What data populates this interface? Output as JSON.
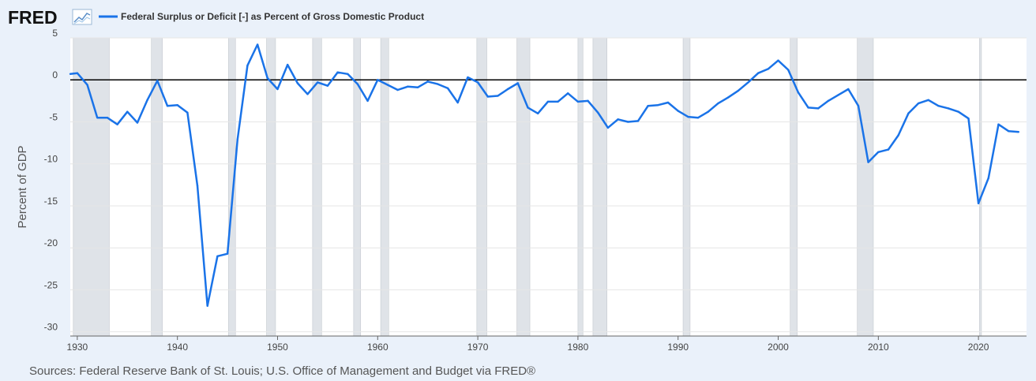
{
  "header": {
    "logo": "FRED",
    "logo_icon": "line-graph-icon",
    "series_label": "Federal Surplus or Deficit [-] as Percent of Gross Domestic Product"
  },
  "footer": {
    "source": "Sources: Federal Reserve Bank of St. Louis; U.S. Office of Management and Budget via FRED®"
  },
  "colors": {
    "series": "#1a73e8",
    "recession": "#dfe3e8",
    "zero_line": "#000000",
    "grid": "#e6e6e6",
    "plot_bg": "#ffffff",
    "page_bg": "#eaf1fa"
  },
  "chart_data": {
    "type": "line",
    "title": "Federal Surplus or Deficit [-] as Percent of Gross Domestic Product",
    "xlabel": "",
    "ylabel": "Percent of GDP",
    "xlim": [
      1929.3,
      2024.8
    ],
    "ylim": [
      -30.5,
      5
    ],
    "x_ticks": [
      1930,
      1940,
      1950,
      1960,
      1970,
      1980,
      1990,
      2000,
      2010,
      2020
    ],
    "x_tick_labels": [
      "1930",
      "1940",
      "1950",
      "1960",
      "1970",
      "1980",
      "1990",
      "2000",
      "2010",
      "2020"
    ],
    "y_ticks": [
      5,
      0,
      -5,
      -10,
      -15,
      -20,
      -25,
      -30
    ],
    "y_tick_labels": [
      "5",
      "0",
      "-5",
      "-10",
      "-15",
      "-20",
      "-25",
      "-30"
    ],
    "grid": true,
    "zero_line": 0,
    "recessions": [
      [
        1929.6,
        1933.2
      ],
      [
        1937.4,
        1938.5
      ],
      [
        1945.1,
        1945.8
      ],
      [
        1948.9,
        1949.8
      ],
      [
        1953.5,
        1954.4
      ],
      [
        1957.6,
        1958.3
      ],
      [
        1960.3,
        1961.1
      ],
      [
        1969.9,
        1970.9
      ],
      [
        1973.9,
        1975.2
      ],
      [
        1980.0,
        1980.5
      ],
      [
        1981.5,
        1982.9
      ],
      [
        1990.5,
        1991.2
      ],
      [
        2001.2,
        2001.9
      ],
      [
        2007.9,
        2009.5
      ],
      [
        2020.1,
        2020.3
      ]
    ],
    "series": [
      {
        "name": "Federal Surplus or Deficit [-] as Percent of Gross Domestic Product",
        "x": [
          1929,
          1930,
          1931,
          1932,
          1933,
          1934,
          1935,
          1936,
          1937,
          1938,
          1939,
          1940,
          1941,
          1942,
          1943,
          1944,
          1945,
          1946,
          1947,
          1948,
          1949,
          1950,
          1951,
          1952,
          1953,
          1954,
          1955,
          1956,
          1957,
          1958,
          1959,
          1960,
          1961,
          1962,
          1963,
          1964,
          1965,
          1966,
          1967,
          1968,
          1969,
          1970,
          1971,
          1972,
          1973,
          1974,
          1975,
          1976,
          1977,
          1978,
          1979,
          1980,
          1981,
          1982,
          1983,
          1984,
          1985,
          1986,
          1987,
          1988,
          1989,
          1990,
          1991,
          1992,
          1993,
          1994,
          1995,
          1996,
          1997,
          1998,
          1999,
          2000,
          2001,
          2002,
          2003,
          2004,
          2005,
          2006,
          2007,
          2008,
          2009,
          2010,
          2011,
          2012,
          2013,
          2014,
          2015,
          2016,
          2017,
          2018,
          2019,
          2020,
          2021,
          2022,
          2023,
          2024
        ],
        "values": [
          0.7,
          0.8,
          -0.6,
          -4.5,
          -4.5,
          -5.3,
          -3.8,
          -5.1,
          -2.4,
          -0.1,
          -3.1,
          -3.0,
          -3.9,
          -12.6,
          -26.9,
          -21.0,
          -20.7,
          -7.1,
          1.7,
          4.2,
          0.2,
          -1.1,
          1.8,
          -0.4,
          -1.7,
          -0.3,
          -0.7,
          0.9,
          0.7,
          -0.5,
          -2.5,
          0.0,
          -0.6,
          -1.2,
          -0.8,
          -0.9,
          -0.2,
          -0.5,
          -1.0,
          -2.7,
          0.3,
          -0.3,
          -2.0,
          -1.9,
          -1.1,
          -0.4,
          -3.3,
          -4.0,
          -2.6,
          -2.6,
          -1.6,
          -2.6,
          -2.5,
          -3.9,
          -5.7,
          -4.7,
          -5.0,
          -4.9,
          -3.1,
          -3.0,
          -2.7,
          -3.7,
          -4.4,
          -4.5,
          -3.8,
          -2.8,
          -2.1,
          -1.3,
          -0.3,
          0.8,
          1.3,
          2.3,
          1.2,
          -1.5,
          -3.3,
          -3.4,
          -2.5,
          -1.8,
          -1.1,
          -3.1,
          -9.8,
          -8.6,
          -8.3,
          -6.6,
          -4.0,
          -2.8,
          -2.4,
          -3.1,
          -3.4,
          -3.8,
          -4.6,
          -14.7,
          -11.7,
          -5.3,
          -6.1,
          -6.2
        ]
      }
    ]
  }
}
